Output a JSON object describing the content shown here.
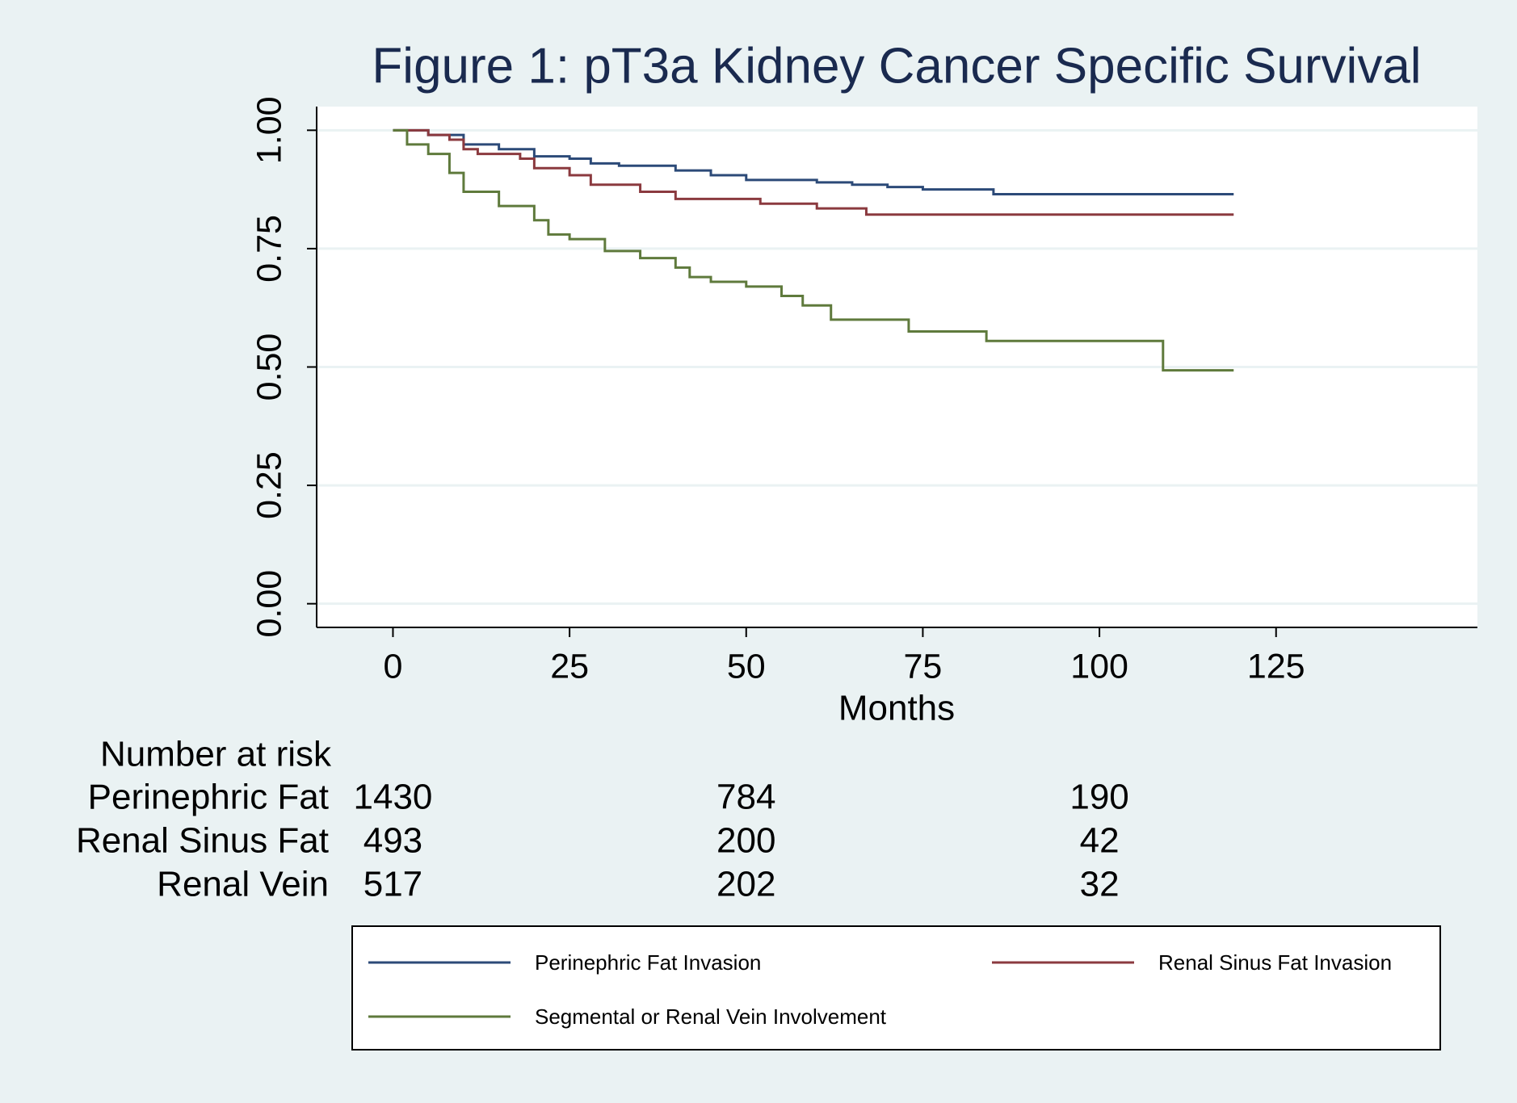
{
  "chart_data": {
    "type": "step",
    "title": "Figure 1: pT3a Kidney Cancer Specific Survival",
    "x_label": "Months",
    "xlim": [
      -10.8,
      153.5
    ],
    "xticks": [
      0,
      25,
      50,
      75,
      100,
      125
    ],
    "ylim": [
      -0.05,
      1.05
    ],
    "yticks": [
      {
        "value": 0,
        "label": "0.00"
      },
      {
        "value": 0.25,
        "label": "0.25"
      },
      {
        "value": 0.5,
        "label": "0.50"
      },
      {
        "value": 0.75,
        "label": "0.75"
      },
      {
        "value": 1,
        "label": "1.00"
      }
    ],
    "grid": true,
    "legend": "bottom",
    "series": [
      {
        "name": "Perinephric Fat Invasion",
        "color": "#2c4a78",
        "x": [
          0,
          5,
          10,
          15,
          20,
          25,
          28,
          32,
          40,
          45,
          50,
          60,
          65,
          70,
          75,
          85,
          119
        ],
        "values": [
          1,
          0.99,
          0.97,
          0.96,
          0.945,
          0.94,
          0.93,
          0.925,
          0.915,
          0.905,
          0.895,
          0.89,
          0.885,
          0.88,
          0.875,
          0.865,
          0.865
        ]
      },
      {
        "name": "Renal Sinus Fat Invasion",
        "color": "#8b3a3f",
        "x": [
          0,
          5,
          8,
          10,
          12,
          18,
          20,
          25,
          28,
          35,
          40,
          52,
          60,
          67,
          119
        ],
        "values": [
          1,
          0.99,
          0.98,
          0.96,
          0.95,
          0.94,
          0.92,
          0.905,
          0.885,
          0.87,
          0.855,
          0.845,
          0.835,
          0.822,
          0.822
        ]
      },
      {
        "name": "Segmental or Renal Vein Involvement",
        "color": "#5f7a3c",
        "x": [
          0,
          2,
          5,
          8,
          10,
          15,
          20,
          22,
          25,
          30,
          35,
          40,
          42,
          45,
          50,
          55,
          58,
          62,
          73,
          84,
          109,
          119
        ],
        "values": [
          1,
          0.97,
          0.95,
          0.91,
          0.87,
          0.84,
          0.81,
          0.78,
          0.77,
          0.745,
          0.73,
          0.71,
          0.69,
          0.68,
          0.67,
          0.65,
          0.63,
          0.6,
          0.575,
          0.555,
          0.493,
          0.493
        ]
      }
    ],
    "risk_table": {
      "title": "Number at risk",
      "times": [
        0,
        50,
        100
      ],
      "rows": [
        {
          "label": "Perinephric Fat",
          "values": [
            1430,
            784,
            190
          ]
        },
        {
          "label": "Renal Sinus Fat",
          "values": [
            493,
            200,
            42
          ]
        },
        {
          "label": "Renal Vein",
          "values": [
            517,
            202,
            32
          ]
        }
      ]
    }
  }
}
